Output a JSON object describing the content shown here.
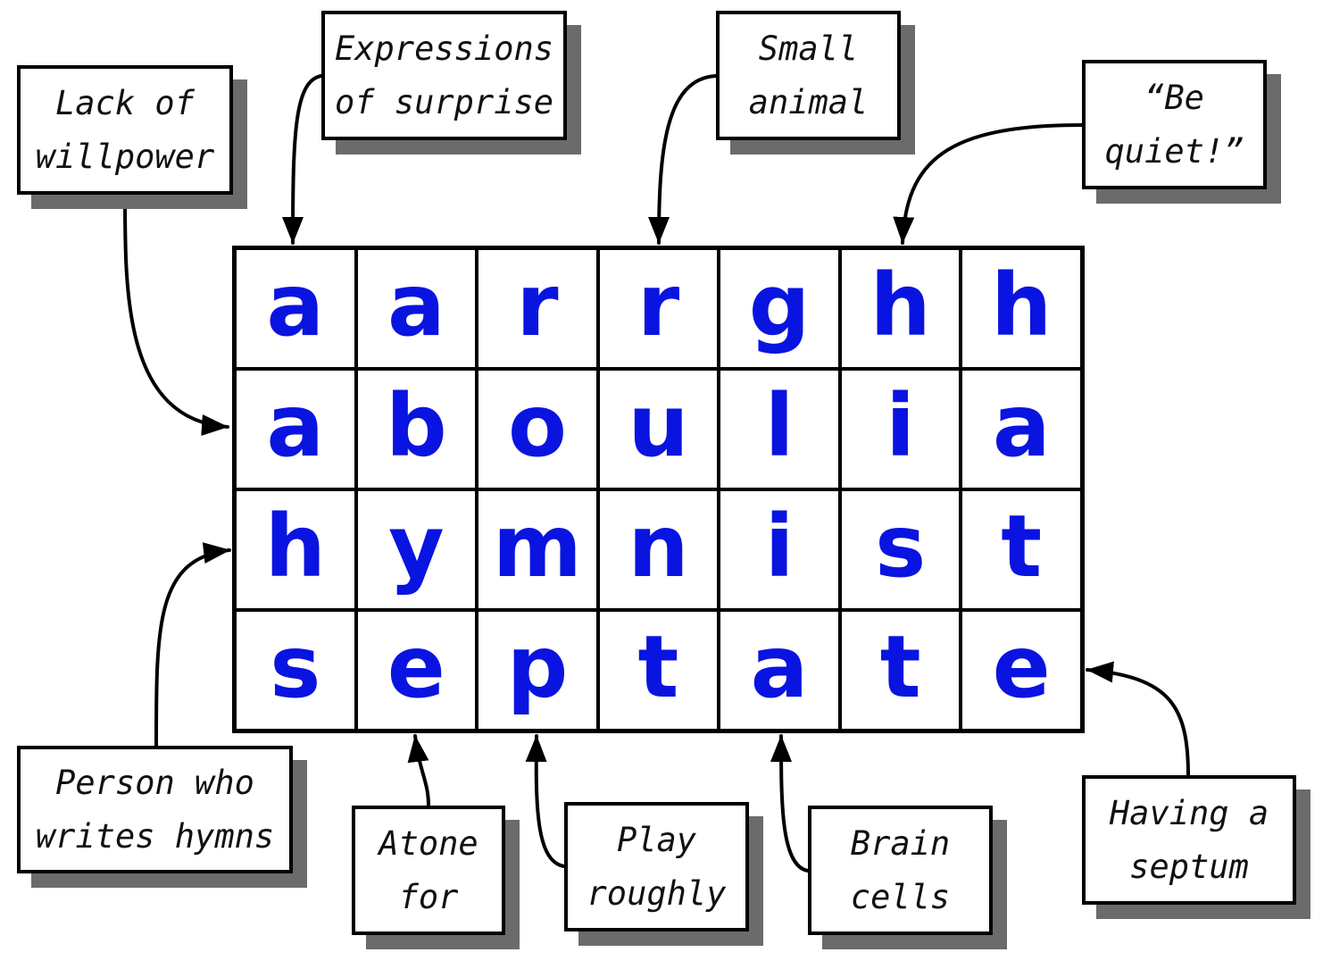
{
  "grid": {
    "rows": [
      [
        "a",
        "a",
        "r",
        "r",
        "g",
        "h",
        "h"
      ],
      [
        "a",
        "b",
        "o",
        "u",
        "l",
        "i",
        "a"
      ],
      [
        "h",
        "y",
        "m",
        "n",
        "i",
        "s",
        "t"
      ],
      [
        "s",
        "e",
        "p",
        "t",
        "a",
        "t",
        "e"
      ]
    ]
  },
  "clues": {
    "lack_of_willpower": "Lack of willpower",
    "expressions_of_surprise": "Expressions of surprise",
    "small_animal": "Small animal",
    "be_quiet": "“Be quiet!”",
    "person_who_writes_hymns": "Person who writes hymns",
    "atone_for": "Atone for",
    "play_roughly": "Play roughly",
    "brain_cells": "Brain cells",
    "having_a_septum": "Having a septum"
  },
  "colors": {
    "letter": "#0a14e0",
    "border": "#000000",
    "shadow": "#6b6b6b"
  }
}
